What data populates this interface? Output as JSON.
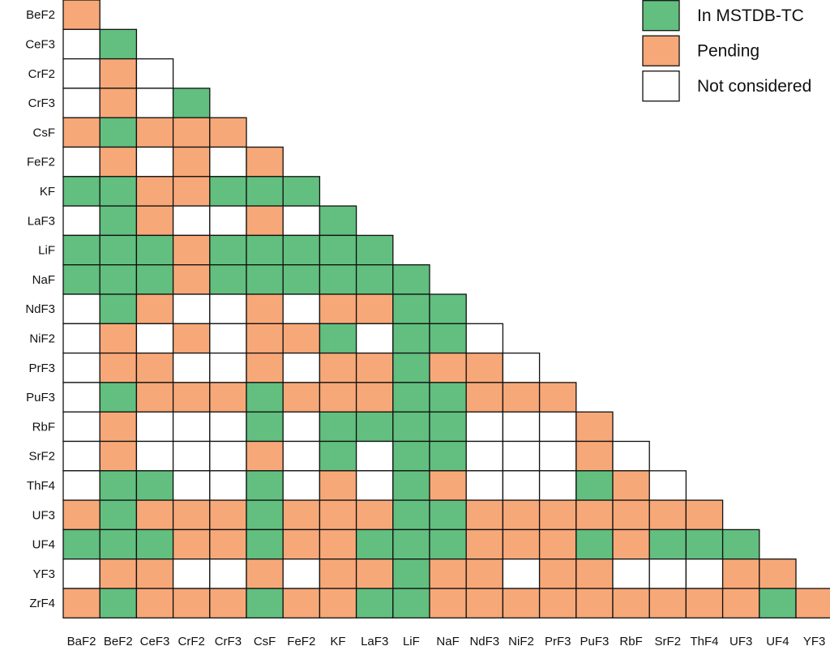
{
  "chart_data": {
    "type": "heatmap",
    "title": "",
    "rows": [
      "BeF2",
      "CeF3",
      "CrF2",
      "CrF3",
      "CsF",
      "FeF2",
      "KF",
      "LaF3",
      "LiF",
      "NaF",
      "NdF3",
      "NiF2",
      "PrF3",
      "PuF3",
      "RbF",
      "SrF2",
      "ThF4",
      "UF3",
      "UF4",
      "YF3",
      "ZrF4"
    ],
    "columns": [
      "BaF2",
      "BeF2",
      "CeF3",
      "CrF2",
      "CrF3",
      "CsF",
      "FeF2",
      "KF",
      "LaF3",
      "LiF",
      "NaF",
      "NdF3",
      "NiF2",
      "PrF3",
      "PuF3",
      "RbF",
      "SrF2",
      "ThF4",
      "UF3",
      "UF4",
      "YF3"
    ],
    "status_codes": {
      "G": "In MSTDB-TC",
      "O": "Pending",
      "W": "Not considered"
    },
    "values": [
      "O",
      "WG",
      "WOW",
      "WOWG",
      "OGOOO",
      "WOWOWO",
      "GGOOGGG",
      "WGOWWOWG",
      "GGGOGGGGG",
      "GGGOGGGGGG",
      "WGOWWOWOOGG",
      "WOWOWOOGWGGW",
      "WOOWWOWOOGOOW",
      "WGOOOGOOOGGOOO",
      "WOWWWGWGGGGWWWO",
      "WOWWWOWGWGGWWWOW",
      "WGGWWGWOWGOWWWGOW",
      "OGOOOGOOOGGOOOOOOO",
      "GGGOOGOOGGGOOOGOGGG",
      "WOOWWOWOOGOOWOOWWWOO",
      "OGOOOGOOGGOOOOOOOOOGO"
    ],
    "legend": {
      "position": "top-right",
      "entries": [
        {
          "label": "In MSTDB-TC",
          "color": "#62bf7f"
        },
        {
          "label": "Pending",
          "color": "#f7a878"
        },
        {
          "label": "Not considered",
          "color": "#ffffff"
        }
      ]
    }
  }
}
